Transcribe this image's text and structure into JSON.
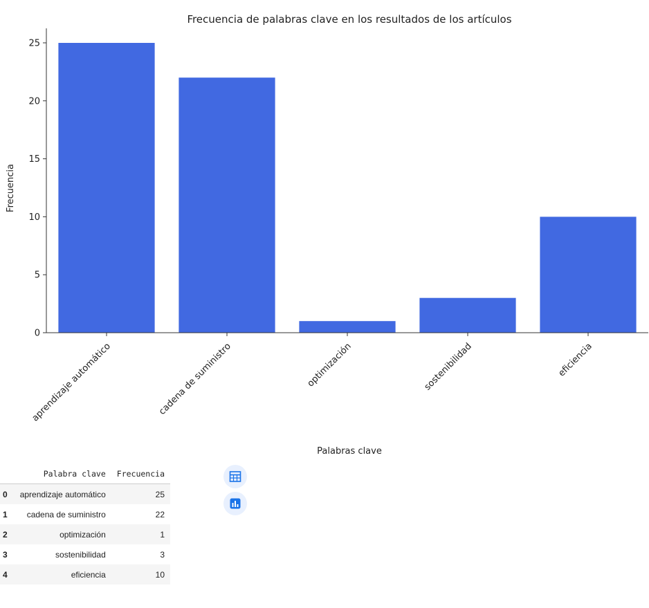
{
  "chart_data": {
    "type": "bar",
    "title": "Frecuencia de palabras clave en los resultados de los artículos",
    "xlabel": "Palabras clave",
    "ylabel": "Frecuencia",
    "categories": [
      "aprendizaje automático",
      "cadena de suministro",
      "optimización",
      "sostenibilidad",
      "eficiencia"
    ],
    "values": [
      25,
      22,
      1,
      3,
      10
    ],
    "ylim": [
      0,
      26.25
    ],
    "yticks": [
      0,
      5,
      10,
      15,
      20,
      25
    ],
    "bar_color": "#4169e1",
    "grid": false
  },
  "table": {
    "columns": [
      "Palabra clave",
      "Frecuencia"
    ],
    "rows": [
      {
        "index": "0",
        "keyword": "aprendizaje automático",
        "freq": "25"
      },
      {
        "index": "1",
        "keyword": "cadena de suministro",
        "freq": "22"
      },
      {
        "index": "2",
        "keyword": "optimización",
        "freq": "1"
      },
      {
        "index": "3",
        "keyword": "sostenibilidad",
        "freq": "3"
      },
      {
        "index": "4",
        "keyword": "eficiencia",
        "freq": "10"
      }
    ]
  },
  "toolbar": {
    "icons": [
      "table-icon",
      "bar-chart-icon"
    ],
    "accent": "#1a73e8"
  }
}
